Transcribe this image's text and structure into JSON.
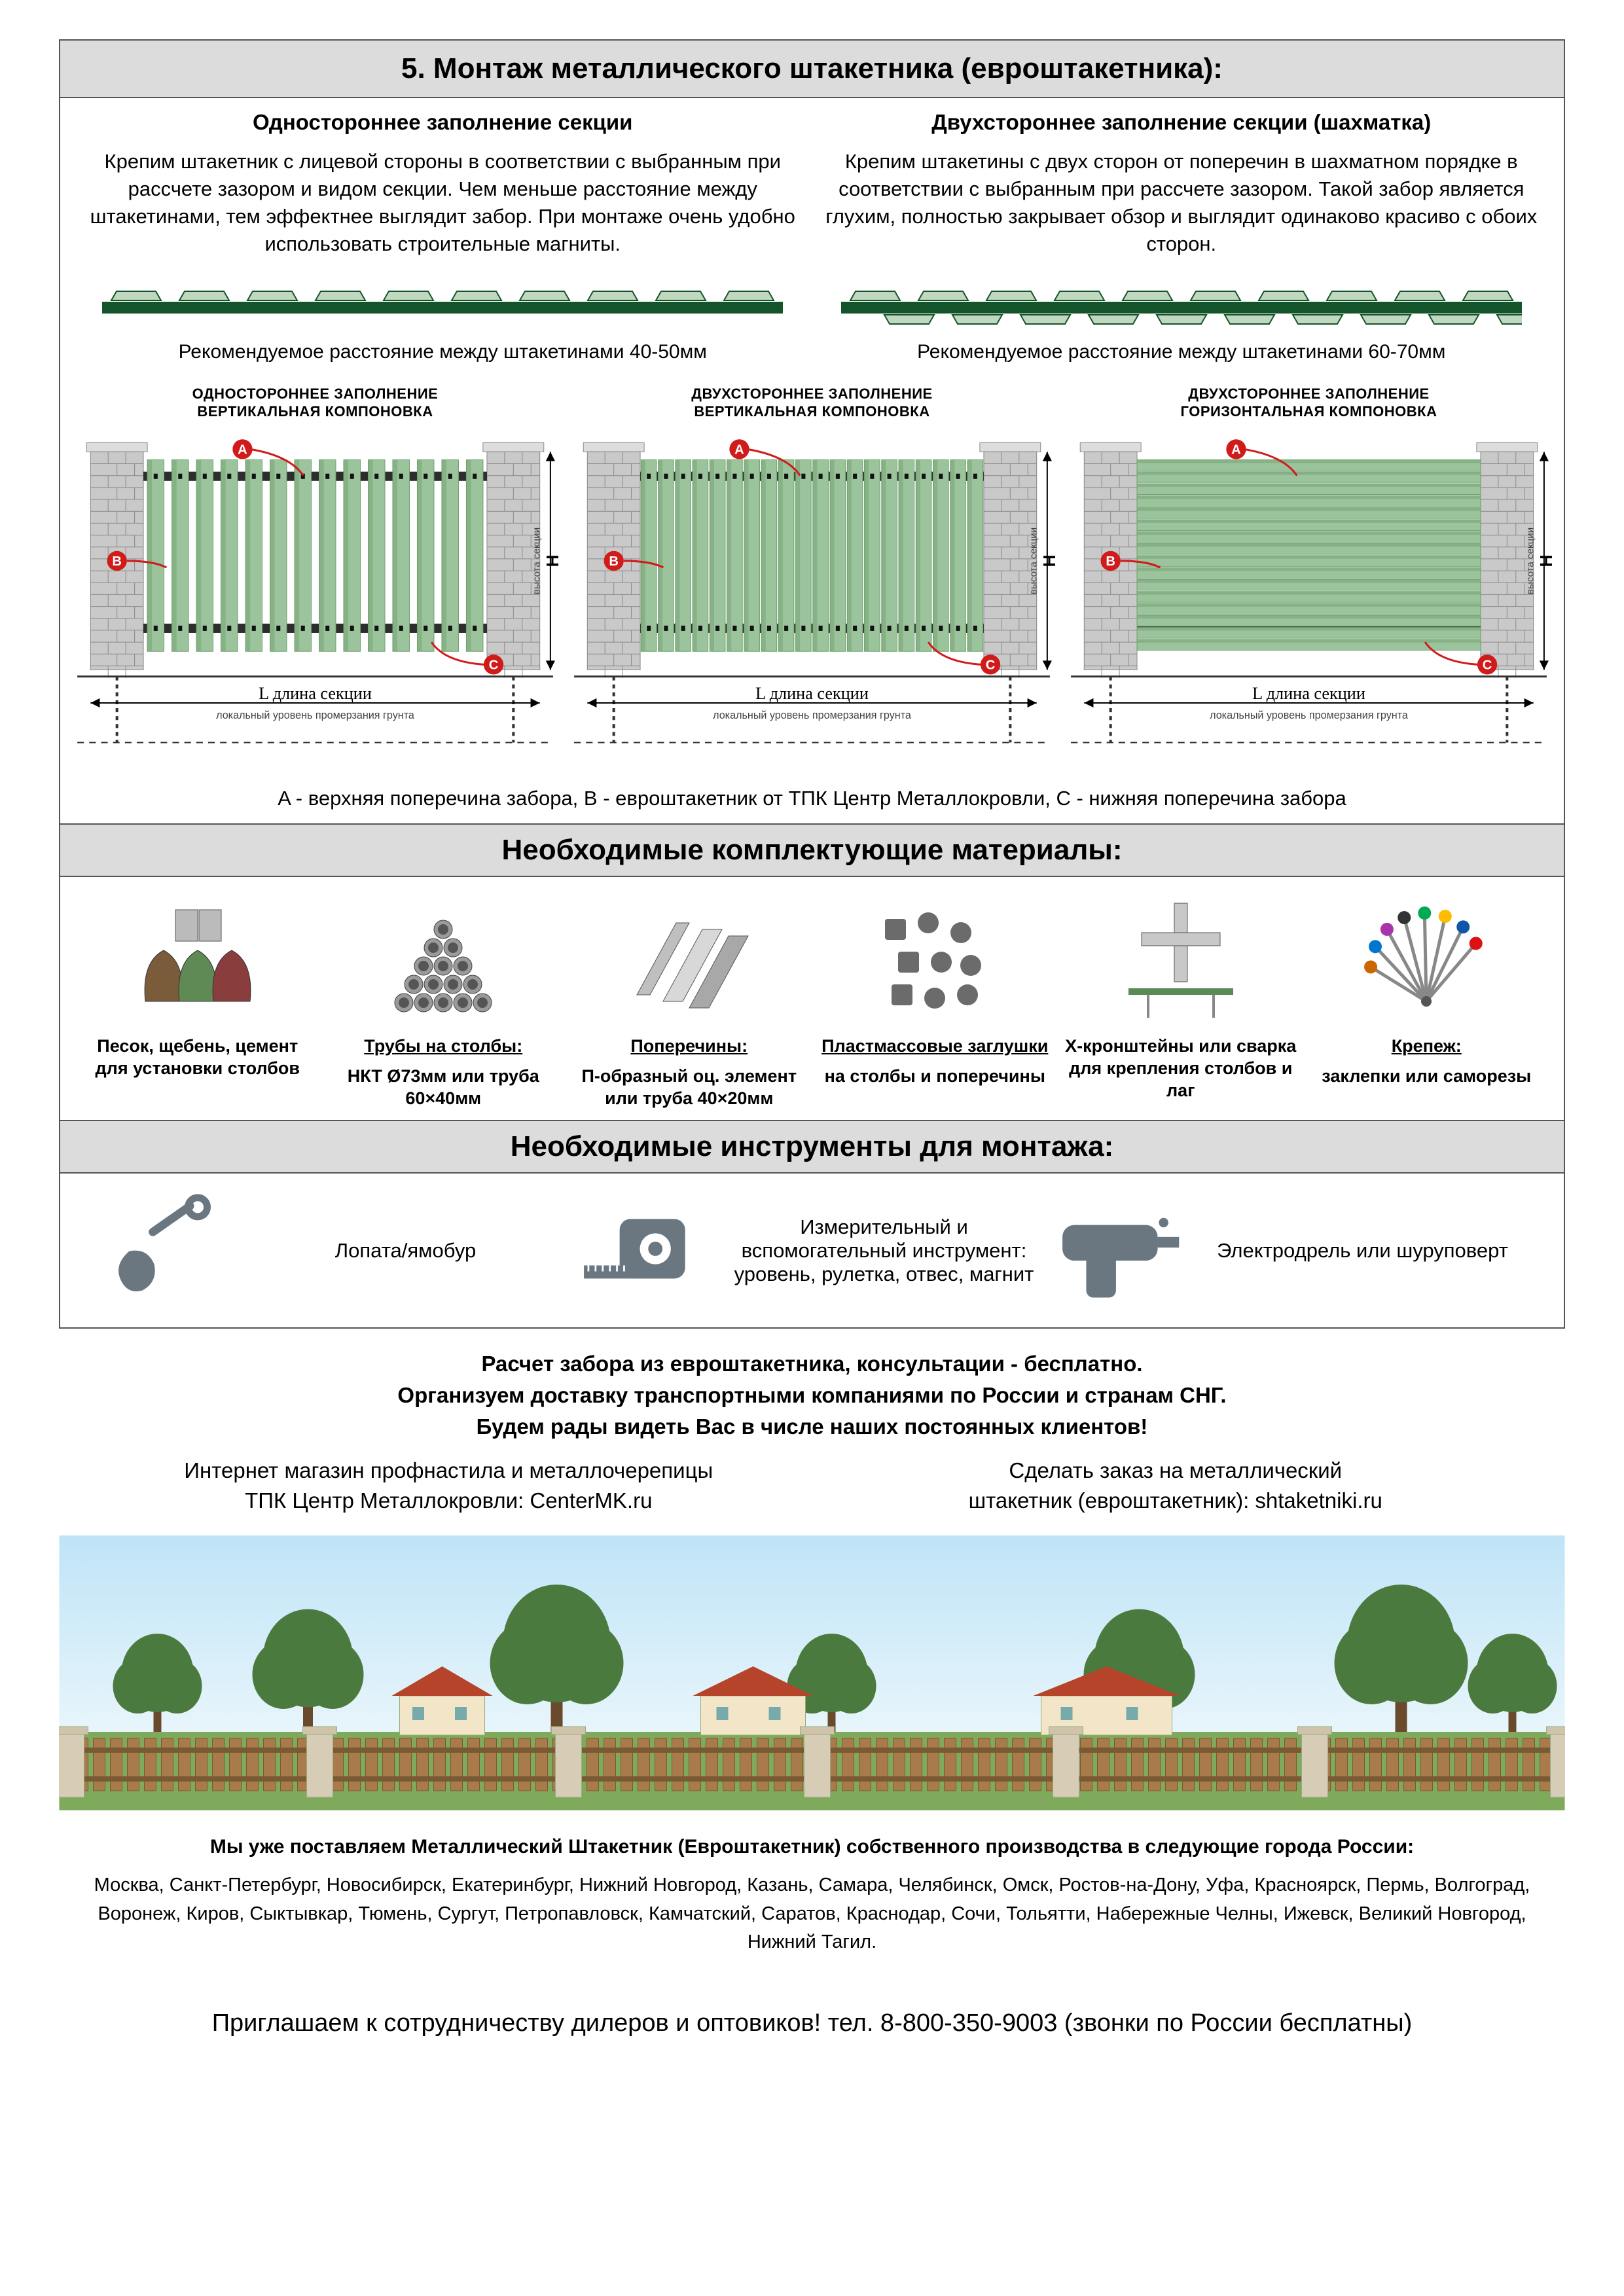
{
  "colors": {
    "header_bg": "#dcdcdc",
    "border": "#555555",
    "rail_green": "#14542a",
    "rail_light": "#bfd8bf",
    "picket_body": "#9cc49c",
    "picket_shadow": "#6fa06f",
    "brick": "#c9c9c9",
    "brick_line": "#8a8a8a",
    "dim_gray": "#777777",
    "marker_red": "#d11b1b",
    "sky1": "#bfe4f7",
    "sky2": "#e8f5fb",
    "tree": "#4b7a3e",
    "trunk": "#6a4a2d",
    "roof": "#b5442a",
    "wall": "#f3e6c8",
    "fence_wood": "#a97b4b",
    "grass": "#7faa5b",
    "icon": "#6a7780"
  },
  "header": "5. Монтаж металлического штакетника (евроштакетника):",
  "left": {
    "title": "Одностороннее заполнение секции",
    "body": "Крепим штакетник с лицевой стороны в соответствии с выбранным при рассчете зазором и видом секции. Чем меньше расстояние между штакетинами, тем эффектнее выглядит забор. При монтаже очень удобно использовать строительные магниты.",
    "rec": "Рекомендуемое расстояние между штакетинами 40-50мм"
  },
  "right": {
    "title": "Двухстороннее заполнение секции (шахматка)",
    "body": "Крепим штакетины с двух сторон от поперечин в шахматном порядке в соответствии с выбранным при рассчете зазором. Такой забор является глухим, полностью закрывает обзор и выглядит одинаково красиво с обоих сторон.",
    "rec": "Рекомендуемое расстояние между штакетинами 60-70мм"
  },
  "fences": [
    {
      "t1": "ОДНОСТОРОННЕЕ ЗАПОЛНЕНИЕ",
      "t2": "ВЕРТИКАЛЬНАЯ КОМПОНОВКА",
      "orient": "v",
      "gap": true
    },
    {
      "t1": "ДВУХСТОРОННЕЕ ЗАПОЛНЕНИЕ",
      "t2": "ВЕРТИКАЛЬНАЯ КОМПОНОВКА",
      "orient": "v",
      "gap": false
    },
    {
      "t1": "ДВУХСТОРОННЕЕ ЗАПОЛНЕНИЕ",
      "t2": "ГОРИЗОНТАЛЬНАЯ КОМПОНОВКА",
      "orient": "h",
      "gap": false
    }
  ],
  "dim": {
    "L": "L  длина секции",
    "Lsub": "локальный уровень промерзания грунта",
    "H": "H",
    "Hsub": "высота секции"
  },
  "legend": "A - верхняя поперечина забора, B - евроштакетник от ТПК Центр Металлокровли, C - нижняя поперечина забора",
  "materials_header": "Необходимые комплектующие материалы:",
  "materials": [
    {
      "label_ul": "",
      "label": "Песок, щебень, цемент для установки столбов",
      "icon": "bags"
    },
    {
      "label_ul": "Трубы на столбы:",
      "label": "НКТ Ø73мм или труба 60×40мм",
      "icon": "pipes"
    },
    {
      "label_ul": "Поперечины:",
      "label": "П-образный оц. элемент или труба 40×20мм",
      "icon": "profiles"
    },
    {
      "label_ul": "Пластмассовые заглушки",
      "label": "на столбы и поперечины",
      "icon": "caps"
    },
    {
      "label_ul": "",
      "label": "X-кронштейны или сварка для крепления столбов и лаг",
      "icon": "bracket"
    },
    {
      "label_ul": "Крепеж:",
      "label": "заклепки или саморезы",
      "icon": "screws"
    }
  ],
  "tools_header": "Необходимые инструменты для монтажа:",
  "tools": [
    {
      "label": "Лопата/ямобур",
      "icon": "shovel"
    },
    {
      "label": "Измерительный и вспомогательный инструмент: уровень, рулетка, отвес, магнит",
      "icon": "tape"
    },
    {
      "label": "Электродрель или шуруповерт",
      "icon": "drill"
    }
  ],
  "promo": {
    "l1": "Расчет забора из евроштакетника, консультации - бесплатно.",
    "l2": "Организуем доставку транспортными компаниями по России и странам СНГ.",
    "l3": "Будем рады видеть Вас в числе наших постоянных клиентов!"
  },
  "links": {
    "left1": "Интернет магазин профнастила и металлочерепицы",
    "left2": "ТПК Центр Металлокровли: CenterMK.ru",
    "right1": "Сделать заказ на металлический",
    "right2": "штакетник (евроштакетник): shtaketniki.ru"
  },
  "cities_head": "Мы уже поставляем Металлический Штакетник (Евроштакетник) собственного производства в следующие города России:",
  "cities": "Москва, Санкт-Петербург, Новосибирск, Екатеринбург, Нижний Новгород, Казань, Самара, Челябинск, Омск, Ростов-на-Дону, Уфа, Красноярск, Пермь, Волгоград, Воронеж, Киров, Сыктывкар, Тюмень, Сургут, Петропавловск, Камчатский, Саратов, Краснодар, Сочи, Тольятти, Набережные Челны, Ижевск, Великий Новгород, Нижний Тагил.",
  "footer": "Приглашаем к сотрудничеству дилеров и оптовиков! тел. 8-800-350-9003 (звонки по России бесплатны)"
}
